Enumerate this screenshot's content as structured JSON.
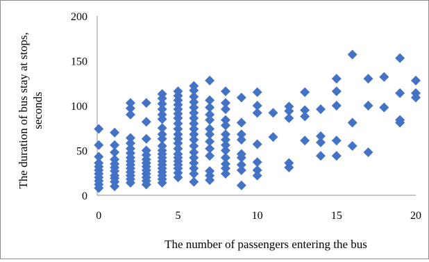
{
  "chart_data": {
    "type": "scatter",
    "title": "",
    "xlabel": "The number of passengers entering the bus",
    "ylabel_lines": [
      "The duration of bus stay at stops,",
      "seconds"
    ],
    "xlim": [
      -0.1,
      20
    ],
    "ylim": [
      0,
      200
    ],
    "x_ticks": [
      0,
      5,
      10,
      15,
      20
    ],
    "y_ticks": [
      0,
      50,
      100,
      150,
      200
    ],
    "grid": false,
    "legend": "none",
    "marker": "diamond",
    "marker_color": "#4472c4",
    "points": [
      {
        "x": 0,
        "y": 8
      },
      {
        "x": 0,
        "y": 12
      },
      {
        "x": 0,
        "y": 16
      },
      {
        "x": 0,
        "y": 20
      },
      {
        "x": 0,
        "y": 24
      },
      {
        "x": 0,
        "y": 28
      },
      {
        "x": 0,
        "y": 32
      },
      {
        "x": 0,
        "y": 36
      },
      {
        "x": 0,
        "y": 43
      },
      {
        "x": 0,
        "y": 56
      },
      {
        "x": 0,
        "y": 74
      },
      {
        "x": 1,
        "y": 10
      },
      {
        "x": 1,
        "y": 15
      },
      {
        "x": 1,
        "y": 19
      },
      {
        "x": 1,
        "y": 22
      },
      {
        "x": 1,
        "y": 27
      },
      {
        "x": 1,
        "y": 31
      },
      {
        "x": 1,
        "y": 35
      },
      {
        "x": 1,
        "y": 40
      },
      {
        "x": 1,
        "y": 48
      },
      {
        "x": 1,
        "y": 56
      },
      {
        "x": 1,
        "y": 70
      },
      {
        "x": 2,
        "y": 14
      },
      {
        "x": 2,
        "y": 18
      },
      {
        "x": 2,
        "y": 22
      },
      {
        "x": 2,
        "y": 26
      },
      {
        "x": 2,
        "y": 30
      },
      {
        "x": 2,
        "y": 34
      },
      {
        "x": 2,
        "y": 38
      },
      {
        "x": 2,
        "y": 42
      },
      {
        "x": 2,
        "y": 47
      },
      {
        "x": 2,
        "y": 52
      },
      {
        "x": 2,
        "y": 58
      },
      {
        "x": 2,
        "y": 64
      },
      {
        "x": 2,
        "y": 90
      },
      {
        "x": 2,
        "y": 97
      },
      {
        "x": 2,
        "y": 103
      },
      {
        "x": 3,
        "y": 12
      },
      {
        "x": 3,
        "y": 16
      },
      {
        "x": 3,
        "y": 20
      },
      {
        "x": 3,
        "y": 24
      },
      {
        "x": 3,
        "y": 28
      },
      {
        "x": 3,
        "y": 32
      },
      {
        "x": 3,
        "y": 36
      },
      {
        "x": 3,
        "y": 40
      },
      {
        "x": 3,
        "y": 45
      },
      {
        "x": 3,
        "y": 50
      },
      {
        "x": 3,
        "y": 63
      },
      {
        "x": 3,
        "y": 82
      },
      {
        "x": 3,
        "y": 103
      },
      {
        "x": 4,
        "y": 14
      },
      {
        "x": 4,
        "y": 18
      },
      {
        "x": 4,
        "y": 22
      },
      {
        "x": 4,
        "y": 26
      },
      {
        "x": 4,
        "y": 30
      },
      {
        "x": 4,
        "y": 34
      },
      {
        "x": 4,
        "y": 38
      },
      {
        "x": 4,
        "y": 42
      },
      {
        "x": 4,
        "y": 46
      },
      {
        "x": 4,
        "y": 50
      },
      {
        "x": 4,
        "y": 55
      },
      {
        "x": 4,
        "y": 63
      },
      {
        "x": 4,
        "y": 68
      },
      {
        "x": 4,
        "y": 75
      },
      {
        "x": 4,
        "y": 85
      },
      {
        "x": 4,
        "y": 90
      },
      {
        "x": 4,
        "y": 96
      },
      {
        "x": 4,
        "y": 102
      },
      {
        "x": 4,
        "y": 108
      },
      {
        "x": 4,
        "y": 113
      },
      {
        "x": 5,
        "y": 20
      },
      {
        "x": 5,
        "y": 25
      },
      {
        "x": 5,
        "y": 30
      },
      {
        "x": 5,
        "y": 34
      },
      {
        "x": 5,
        "y": 38
      },
      {
        "x": 5,
        "y": 42
      },
      {
        "x": 5,
        "y": 46
      },
      {
        "x": 5,
        "y": 52
      },
      {
        "x": 5,
        "y": 58
      },
      {
        "x": 5,
        "y": 63
      },
      {
        "x": 5,
        "y": 68
      },
      {
        "x": 5,
        "y": 74
      },
      {
        "x": 5,
        "y": 80
      },
      {
        "x": 5,
        "y": 86
      },
      {
        "x": 5,
        "y": 91
      },
      {
        "x": 5,
        "y": 96
      },
      {
        "x": 5,
        "y": 101
      },
      {
        "x": 5,
        "y": 106
      },
      {
        "x": 5,
        "y": 111
      },
      {
        "x": 5,
        "y": 116
      },
      {
        "x": 6,
        "y": 15
      },
      {
        "x": 6,
        "y": 24
      },
      {
        "x": 6,
        "y": 30
      },
      {
        "x": 6,
        "y": 36
      },
      {
        "x": 6,
        "y": 42
      },
      {
        "x": 6,
        "y": 48
      },
      {
        "x": 6,
        "y": 55
      },
      {
        "x": 6,
        "y": 62
      },
      {
        "x": 6,
        "y": 68
      },
      {
        "x": 6,
        "y": 74
      },
      {
        "x": 6,
        "y": 80
      },
      {
        "x": 6,
        "y": 86
      },
      {
        "x": 6,
        "y": 92
      },
      {
        "x": 6,
        "y": 98
      },
      {
        "x": 6,
        "y": 104
      },
      {
        "x": 6,
        "y": 110
      },
      {
        "x": 6,
        "y": 117
      },
      {
        "x": 6,
        "y": 122
      },
      {
        "x": 7,
        "y": 17
      },
      {
        "x": 7,
        "y": 22
      },
      {
        "x": 7,
        "y": 27
      },
      {
        "x": 7,
        "y": 44
      },
      {
        "x": 7,
        "y": 52
      },
      {
        "x": 7,
        "y": 60
      },
      {
        "x": 7,
        "y": 68
      },
      {
        "x": 7,
        "y": 74
      },
      {
        "x": 7,
        "y": 84
      },
      {
        "x": 7,
        "y": 90
      },
      {
        "x": 7,
        "y": 98
      },
      {
        "x": 7,
        "y": 106
      },
      {
        "x": 7,
        "y": 128
      },
      {
        "x": 8,
        "y": 24
      },
      {
        "x": 8,
        "y": 30
      },
      {
        "x": 8,
        "y": 35
      },
      {
        "x": 8,
        "y": 42
      },
      {
        "x": 8,
        "y": 50
      },
      {
        "x": 8,
        "y": 56
      },
      {
        "x": 8,
        "y": 62
      },
      {
        "x": 8,
        "y": 68
      },
      {
        "x": 8,
        "y": 78
      },
      {
        "x": 8,
        "y": 84
      },
      {
        "x": 8,
        "y": 96
      },
      {
        "x": 8,
        "y": 103
      },
      {
        "x": 8,
        "y": 116
      },
      {
        "x": 9,
        "y": 11
      },
      {
        "x": 9,
        "y": 28
      },
      {
        "x": 9,
        "y": 34
      },
      {
        "x": 9,
        "y": 42
      },
      {
        "x": 9,
        "y": 46
      },
      {
        "x": 9,
        "y": 62
      },
      {
        "x": 9,
        "y": 68
      },
      {
        "x": 9,
        "y": 81
      },
      {
        "x": 9,
        "y": 109
      },
      {
        "x": 10,
        "y": 22
      },
      {
        "x": 10,
        "y": 28
      },
      {
        "x": 10,
        "y": 37
      },
      {
        "x": 10,
        "y": 57
      },
      {
        "x": 10,
        "y": 92
      },
      {
        "x": 10,
        "y": 100
      },
      {
        "x": 10,
        "y": 115
      },
      {
        "x": 11,
        "y": 65
      },
      {
        "x": 11,
        "y": 92
      },
      {
        "x": 12,
        "y": 31
      },
      {
        "x": 12,
        "y": 36
      },
      {
        "x": 12,
        "y": 86
      },
      {
        "x": 12,
        "y": 94
      },
      {
        "x": 12,
        "y": 99
      },
      {
        "x": 13,
        "y": 61
      },
      {
        "x": 13,
        "y": 88
      },
      {
        "x": 13,
        "y": 95
      },
      {
        "x": 13,
        "y": 115
      },
      {
        "x": 14,
        "y": 44
      },
      {
        "x": 14,
        "y": 59
      },
      {
        "x": 14,
        "y": 66
      },
      {
        "x": 14,
        "y": 96
      },
      {
        "x": 15,
        "y": 44
      },
      {
        "x": 15,
        "y": 61
      },
      {
        "x": 15,
        "y": 100
      },
      {
        "x": 15,
        "y": 116
      },
      {
        "x": 15,
        "y": 130
      },
      {
        "x": 16,
        "y": 55
      },
      {
        "x": 16,
        "y": 81
      },
      {
        "x": 16,
        "y": 157
      },
      {
        "x": 17,
        "y": 48
      },
      {
        "x": 17,
        "y": 100
      },
      {
        "x": 17,
        "y": 130
      },
      {
        "x": 18,
        "y": 98
      },
      {
        "x": 18,
        "y": 132
      },
      {
        "x": 19,
        "y": 81
      },
      {
        "x": 19,
        "y": 84
      },
      {
        "x": 19,
        "y": 114
      },
      {
        "x": 19,
        "y": 153
      },
      {
        "x": 20,
        "y": 109
      },
      {
        "x": 20,
        "y": 114
      },
      {
        "x": 20,
        "y": 128
      }
    ]
  }
}
